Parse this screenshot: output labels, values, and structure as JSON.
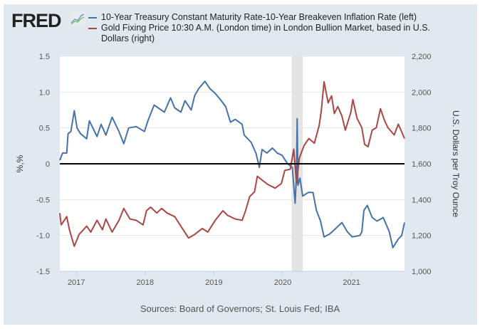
{
  "header": {
    "logo": "FRED",
    "logo_icon": "line-chart-icon"
  },
  "chart_data": {
    "type": "line",
    "legend": [
      {
        "label": "10-Year Treasury Constant Maturity Rate-10-Year Breakeven Inflation Rate (left)",
        "color": "#4572a7"
      },
      {
        "label": "Gold Fixing Price 10:30 A.M. (London time) in London Bullion Market, based in U.S.",
        "label2": "Dollars (right)",
        "color": "#aa4643"
      }
    ],
    "legend_placement": "top",
    "xlim": [
      2016.76,
      2021.77
    ],
    "x_ticks": [
      "2017",
      "2018",
      "2019",
      "2020",
      "2021"
    ],
    "ylabel_left": "%,%",
    "ylim_left": [
      -1.5,
      1.5
    ],
    "y_ticks_left": [
      "1.5",
      "1.0",
      "0.5",
      "0",
      "-0.5",
      "-1.0",
      "-1.5"
    ],
    "ylabel_right": "U.S. Dollars per Troy Ounce",
    "ylim_right": [
      1000,
      2200
    ],
    "y_ticks_right": [
      "2,200",
      "2,000",
      "1,800",
      "1,600",
      "1,400",
      "1,200",
      "1,000"
    ],
    "recession_shading": [
      2020.13,
      2020.29
    ],
    "zero_line": 0,
    "grid": true,
    "series": [
      {
        "name": "10-Year Treasury Constant Maturity Rate-10-Year Breakeven Inflation Rate",
        "axis": "left",
        "color": "#4572a7",
        "x": [
          2016.76,
          2016.8,
          2016.86,
          2016.87,
          2016.88,
          2016.92,
          2016.97,
          2017.01,
          2017.06,
          2017.15,
          2017.19,
          2017.3,
          2017.36,
          2017.43,
          2017.52,
          2017.62,
          2017.69,
          2017.76,
          2017.87,
          2017.99,
          2018.04,
          2018.13,
          2018.28,
          2018.37,
          2018.43,
          2018.52,
          2018.58,
          2018.67,
          2018.72,
          2018.78,
          2018.87,
          2018.94,
          2019.02,
          2019.09,
          2019.17,
          2019.24,
          2019.31,
          2019.41,
          2019.44,
          2019.54,
          2019.61,
          2019.66,
          2019.7,
          2019.77,
          2019.85,
          2019.92,
          2019.99,
          2020.07,
          2020.14,
          2020.18,
          2020.2,
          2020.21,
          2020.22,
          2020.25,
          2020.29,
          2020.37,
          2020.44,
          2020.49,
          2020.55,
          2020.6,
          2020.68,
          2020.75,
          2020.86,
          2020.94,
          2021.01,
          2021.12,
          2021.15,
          2021.18,
          2021.23,
          2021.3,
          2021.37,
          2021.46,
          2021.55,
          2021.6,
          2021.68,
          2021.73,
          2021.77
        ],
        "y": [
          0.05,
          0.15,
          0.15,
          0.28,
          0.42,
          0.45,
          0.74,
          0.5,
          0.42,
          0.35,
          0.6,
          0.38,
          0.55,
          0.4,
          0.65,
          0.45,
          0.28,
          0.5,
          0.52,
          0.45,
          0.6,
          0.82,
          0.72,
          0.92,
          0.78,
          0.72,
          0.88,
          0.75,
          0.95,
          1.05,
          1.15,
          1.05,
          0.98,
          0.9,
          0.8,
          0.58,
          0.62,
          0.55,
          0.4,
          0.3,
          0.15,
          -0.05,
          0.2,
          0.15,
          0.22,
          0.15,
          0.12,
          0.0,
          -0.05,
          -0.55,
          -0.15,
          0.63,
          -0.3,
          -0.2,
          -0.45,
          -0.4,
          -0.4,
          -0.65,
          -0.8,
          -1.02,
          -0.98,
          -0.92,
          -0.82,
          -0.95,
          -1.02,
          -1.0,
          -0.95,
          -0.65,
          -0.58,
          -0.75,
          -0.8,
          -0.75,
          -0.95,
          -1.17,
          -1.05,
          -1.0,
          -0.82
        ]
      },
      {
        "name": "Gold Fixing Price 10:30 A.M. (London time) in London Bullion Market, based in U.S. Dollars",
        "axis": "right",
        "color": "#aa4643",
        "x": [
          2016.76,
          2016.78,
          2016.86,
          2016.9,
          2016.97,
          2017.04,
          2017.15,
          2017.21,
          2017.3,
          2017.38,
          2017.43,
          2017.52,
          2017.62,
          2017.69,
          2017.78,
          2017.87,
          2017.97,
          2018.02,
          2018.08,
          2018.17,
          2018.24,
          2018.32,
          2018.43,
          2018.52,
          2018.63,
          2018.72,
          2018.83,
          2018.91,
          2019.02,
          2019.13,
          2019.2,
          2019.31,
          2019.41,
          2019.46,
          2019.52,
          2019.59,
          2019.63,
          2019.72,
          2019.79,
          2019.89,
          2019.98,
          2020.03,
          2020.11,
          2020.16,
          2020.2,
          2020.24,
          2020.27,
          2020.31,
          2020.38,
          2020.46,
          2020.53,
          2020.56,
          2020.6,
          2020.66,
          2020.71,
          2020.75,
          2020.8,
          2020.86,
          2020.91,
          2020.99,
          2021.02,
          2021.08,
          2021.15,
          2021.19,
          2021.24,
          2021.3,
          2021.36,
          2021.42,
          2021.48,
          2021.53,
          2021.62,
          2021.68,
          2021.77
        ],
        "y": [
          1325,
          1259,
          1305,
          1232,
          1140,
          1206,
          1252,
          1219,
          1285,
          1232,
          1292,
          1219,
          1285,
          1351,
          1292,
          1285,
          1259,
          1338,
          1358,
          1325,
          1351,
          1325,
          1305,
          1252,
          1186,
          1206,
          1239,
          1219,
          1285,
          1338,
          1312,
          1292,
          1285,
          1338,
          1417,
          1444,
          1530,
          1503,
          1483,
          1464,
          1490,
          1563,
          1570,
          1682,
          1490,
          1629,
          1662,
          1702,
          1741,
          1715,
          1814,
          1893,
          2058,
          1940,
          1979,
          1880,
          1920,
          1867,
          1788,
          1887,
          1959,
          1854,
          1801,
          1708,
          1695,
          1788,
          1801,
          1907,
          1841,
          1801,
          1761,
          1821,
          1741
        ]
      }
    ]
  },
  "footer": {
    "sources": "Sources: Board of Governors; St. Louis Fed; IBA"
  }
}
